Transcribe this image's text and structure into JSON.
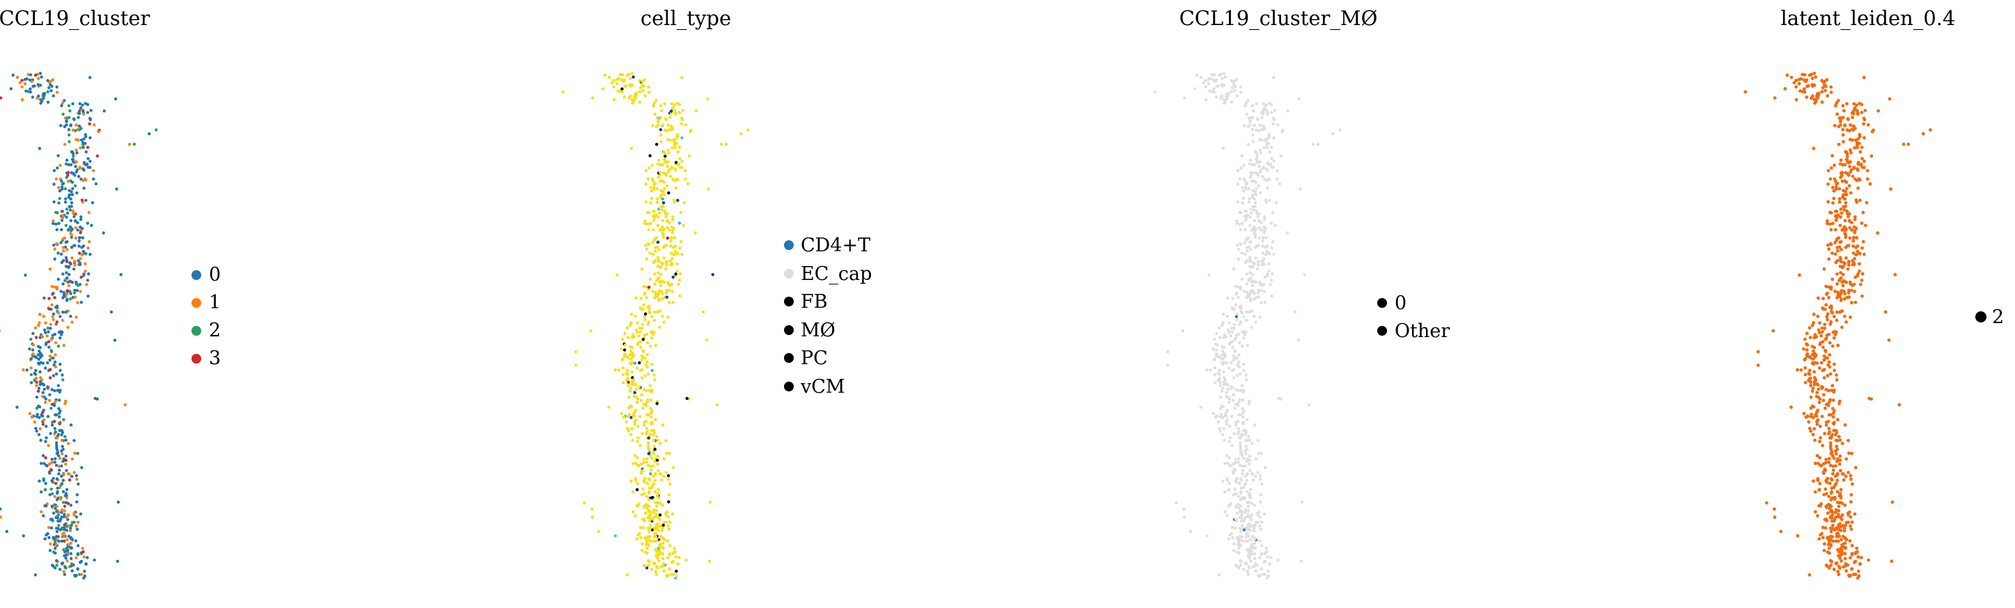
{
  "figure": {
    "panels": [
      {
        "title": "CCL19_cluster",
        "legend": [
          {
            "label": "0",
            "color": "#1f77b4"
          },
          {
            "label": "1",
            "color": "#ff7f0e"
          },
          {
            "label": "2",
            "color": "#279e68"
          },
          {
            "label": "3",
            "color": "#d62728"
          }
        ]
      },
      {
        "title": "cell_type",
        "legend": [
          {
            "label": "CD4+T",
            "color": "#4ec8c8"
          },
          {
            "label": "EC_cap",
            "color": "#000000"
          },
          {
            "label": "FB",
            "color": "#0033cc"
          },
          {
            "label": "MØ",
            "color": "#b2182b"
          },
          {
            "label": "PC",
            "color": "#3aaec8"
          },
          {
            "label": "vCM",
            "color": "#f5e014"
          }
        ]
      },
      {
        "title": "CCL19_cluster_MØ",
        "legend": [
          {
            "label": "0",
            "color": "#1f77b4"
          },
          {
            "label": "Other",
            "color": "#dedede"
          }
        ]
      },
      {
        "title": "latent_leiden_0.4",
        "legend": [
          {
            "label": "2",
            "color": "#f26b0f"
          }
        ]
      }
    ]
  },
  "chart_data": [
    {
      "type": "scatter",
      "title": "CCL19_cluster",
      "xlabel": "",
      "ylabel": "",
      "axes": "off",
      "legend_placement": "right",
      "series": [
        {
          "name": "0",
          "color": "#1f77b4",
          "share": 0.62
        },
        {
          "name": "1",
          "color": "#ff7f0e",
          "share": 0.25
        },
        {
          "name": "2",
          "color": "#279e68",
          "share": 0.09
        },
        {
          "name": "3",
          "color": "#d62728",
          "share": 0.04
        }
      ]
    },
    {
      "type": "scatter",
      "title": "cell_type",
      "xlabel": "",
      "ylabel": "",
      "axes": "off",
      "legend_placement": "right",
      "series": [
        {
          "name": "CD4+T",
          "color": "#4ec8c8",
          "share": 0.01
        },
        {
          "name": "EC_cap",
          "color": "#000000",
          "share": 0.03
        },
        {
          "name": "FB",
          "color": "#0033cc",
          "share": 0.02
        },
        {
          "name": "MØ",
          "color": "#b2182b",
          "share": 0.005
        },
        {
          "name": "PC",
          "color": "#3aaec8",
          "share": 0.005
        },
        {
          "name": "vCM",
          "color": "#f5e014",
          "share": 0.93
        }
      ]
    },
    {
      "type": "scatter",
      "title": "CCL19_cluster_MØ",
      "xlabel": "",
      "ylabel": "",
      "axes": "off",
      "legend_placement": "right",
      "series": [
        {
          "name": "0",
          "color": "#1f77b4",
          "share": 0.005
        },
        {
          "name": "Other",
          "color": "#dedede",
          "share": 0.995
        }
      ]
    },
    {
      "type": "scatter",
      "title": "latent_leiden_0.4",
      "xlabel": "",
      "ylabel": "",
      "axes": "off",
      "legend_placement": "right",
      "series": [
        {
          "name": "2",
          "color": "#f26b0f",
          "share": 1.0
        }
      ]
    }
  ]
}
